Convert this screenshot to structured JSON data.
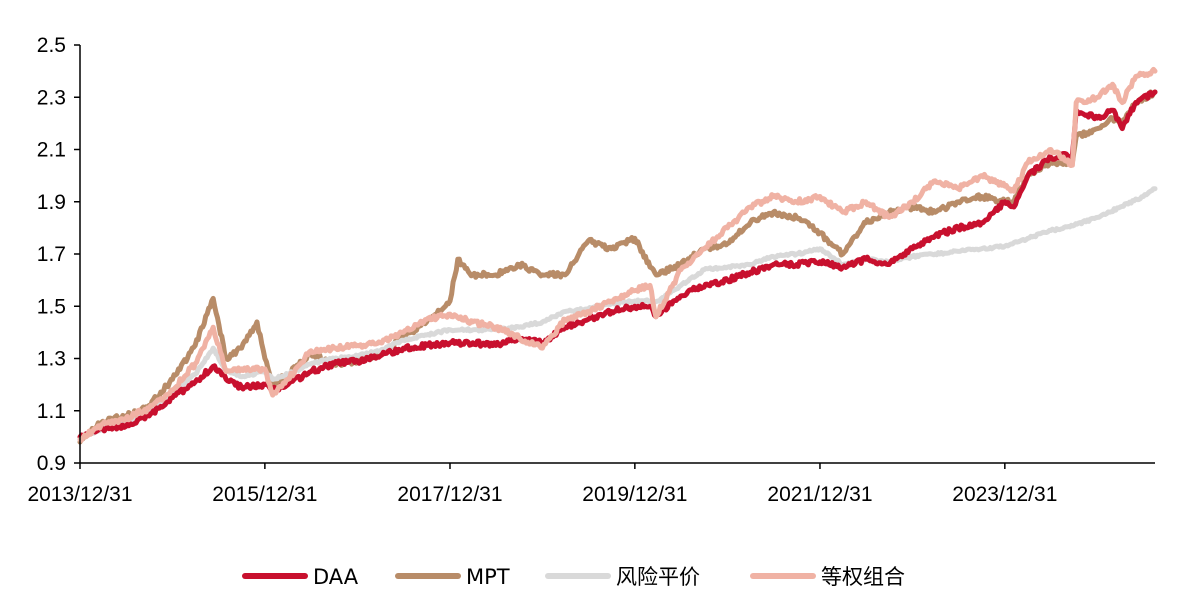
{
  "chart_data": {
    "type": "line",
    "title": "",
    "xlabel": "",
    "ylabel": "",
    "ylim": [
      0.9,
      2.5
    ],
    "xlim": [
      "2013-12-31",
      "2025-08-15"
    ],
    "x_tick_labels": [
      "2013/12/31",
      "2015/12/31",
      "2017/12/31",
      "2019/12/31",
      "2021/12/31",
      "2023/12/31"
    ],
    "x_tick_dates": [
      "2013-12-31",
      "2015-12-31",
      "2017-12-31",
      "2019-12-31",
      "2021-12-31",
      "2023-12-31"
    ],
    "y_ticks": [
      0.9,
      1.1,
      1.3,
      1.5,
      1.7,
      1.9,
      2.1,
      2.3,
      2.5
    ],
    "y_tick_labels": [
      "0.9",
      "1.1",
      "1.3",
      "1.5",
      "1.7",
      "1.9",
      "2.1",
      "2.3",
      "2.5"
    ],
    "grid": false,
    "legend_position": "bottom",
    "series": [
      {
        "name": "DAA",
        "color": "#c8102e",
        "points": [
          [
            "2013-12-31",
            1.0
          ],
          [
            "2014-03-31",
            1.03
          ],
          [
            "2014-06-30",
            1.04
          ],
          [
            "2014-09-30",
            1.08
          ],
          [
            "2014-12-31",
            1.15
          ],
          [
            "2015-03-31",
            1.21
          ],
          [
            "2015-06-10",
            1.27
          ],
          [
            "2015-07-31",
            1.22
          ],
          [
            "2015-09-30",
            1.19
          ],
          [
            "2015-12-31",
            1.2
          ],
          [
            "2016-01-31",
            1.18
          ],
          [
            "2016-03-31",
            1.2
          ],
          [
            "2016-06-30",
            1.25
          ],
          [
            "2016-09-30",
            1.28
          ],
          [
            "2016-12-31",
            1.29
          ],
          [
            "2017-03-31",
            1.31
          ],
          [
            "2017-06-30",
            1.34
          ],
          [
            "2017-09-30",
            1.35
          ],
          [
            "2017-12-31",
            1.36
          ],
          [
            "2018-03-31",
            1.36
          ],
          [
            "2018-06-30",
            1.35
          ],
          [
            "2018-09-30",
            1.38
          ],
          [
            "2018-12-31",
            1.36
          ],
          [
            "2019-03-31",
            1.42
          ],
          [
            "2019-06-30",
            1.45
          ],
          [
            "2019-09-30",
            1.48
          ],
          [
            "2019-12-31",
            1.5
          ],
          [
            "2020-02-29",
            1.5
          ],
          [
            "2020-03-23",
            1.46
          ],
          [
            "2020-05-31",
            1.52
          ],
          [
            "2020-08-31",
            1.57
          ],
          [
            "2020-12-31",
            1.6
          ],
          [
            "2021-03-31",
            1.63
          ],
          [
            "2021-06-30",
            1.66
          ],
          [
            "2021-09-30",
            1.66
          ],
          [
            "2021-12-31",
            1.67
          ],
          [
            "2022-03-31",
            1.65
          ],
          [
            "2022-06-30",
            1.68
          ],
          [
            "2022-09-30",
            1.66
          ],
          [
            "2022-12-31",
            1.72
          ],
          [
            "2023-03-31",
            1.77
          ],
          [
            "2023-06-30",
            1.8
          ],
          [
            "2023-09-30",
            1.82
          ],
          [
            "2023-12-31",
            1.9
          ],
          [
            "2024-02-05",
            1.88
          ],
          [
            "2024-03-31",
            2.0
          ],
          [
            "2024-06-30",
            2.07
          ],
          [
            "2024-09-23",
            2.08
          ],
          [
            "2024-10-08",
            2.25
          ],
          [
            "2024-12-31",
            2.22
          ],
          [
            "2025-02-28",
            2.25
          ],
          [
            "2025-04-08",
            2.18
          ],
          [
            "2025-05-31",
            2.28
          ],
          [
            "2025-08-15",
            2.32
          ]
        ]
      },
      {
        "name": "MPT",
        "color": "#b88c68",
        "points": [
          [
            "2013-12-31",
            0.98
          ],
          [
            "2014-03-31",
            1.06
          ],
          [
            "2014-06-30",
            1.08
          ],
          [
            "2014-09-30",
            1.12
          ],
          [
            "2014-12-31",
            1.22
          ],
          [
            "2015-03-31",
            1.35
          ],
          [
            "2015-06-10",
            1.53
          ],
          [
            "2015-07-31",
            1.3
          ],
          [
            "2015-09-30",
            1.34
          ],
          [
            "2015-11-30",
            1.44
          ],
          [
            "2015-12-31",
            1.3
          ],
          [
            "2016-01-31",
            1.2
          ],
          [
            "2016-03-31",
            1.24
          ],
          [
            "2016-06-30",
            1.32
          ],
          [
            "2016-09-30",
            1.28
          ],
          [
            "2016-12-31",
            1.29
          ],
          [
            "2017-03-31",
            1.32
          ],
          [
            "2017-06-30",
            1.38
          ],
          [
            "2017-09-30",
            1.44
          ],
          [
            "2017-12-31",
            1.52
          ],
          [
            "2018-01-31",
            1.68
          ],
          [
            "2018-03-31",
            1.62
          ],
          [
            "2018-06-30",
            1.62
          ],
          [
            "2018-09-30",
            1.66
          ],
          [
            "2018-12-31",
            1.62
          ],
          [
            "2019-03-31",
            1.62
          ],
          [
            "2019-06-30",
            1.75
          ],
          [
            "2019-09-30",
            1.72
          ],
          [
            "2019-12-31",
            1.76
          ],
          [
            "2020-02-29",
            1.65
          ],
          [
            "2020-03-31",
            1.62
          ],
          [
            "2020-06-30",
            1.66
          ],
          [
            "2020-09-30",
            1.72
          ],
          [
            "2020-12-31",
            1.74
          ],
          [
            "2021-03-31",
            1.82
          ],
          [
            "2021-06-30",
            1.86
          ],
          [
            "2021-09-30",
            1.84
          ],
          [
            "2021-12-31",
            1.78
          ],
          [
            "2022-03-31",
            1.7
          ],
          [
            "2022-06-30",
            1.82
          ],
          [
            "2022-09-30",
            1.86
          ],
          [
            "2022-12-31",
            1.88
          ],
          [
            "2023-03-31",
            1.86
          ],
          [
            "2023-06-30",
            1.9
          ],
          [
            "2023-09-30",
            1.92
          ],
          [
            "2023-12-31",
            1.9
          ],
          [
            "2024-02-05",
            1.9
          ],
          [
            "2024-03-31",
            2.0
          ],
          [
            "2024-06-30",
            2.05
          ],
          [
            "2024-09-23",
            2.05
          ],
          [
            "2024-10-08",
            2.15
          ],
          [
            "2024-12-31",
            2.18
          ],
          [
            "2025-02-28",
            2.22
          ],
          [
            "2025-04-08",
            2.2
          ],
          [
            "2025-05-31",
            2.28
          ],
          [
            "2025-08-15",
            2.32
          ]
        ]
      },
      {
        "name": "风险平价",
        "color": "#d9d9d9",
        "points": [
          [
            "2013-12-31",
            1.0
          ],
          [
            "2014-03-31",
            1.03
          ],
          [
            "2014-06-30",
            1.05
          ],
          [
            "2014-09-30",
            1.1
          ],
          [
            "2014-12-31",
            1.17
          ],
          [
            "2015-03-31",
            1.24
          ],
          [
            "2015-06-10",
            1.34
          ],
          [
            "2015-07-31",
            1.25
          ],
          [
            "2015-09-30",
            1.23
          ],
          [
            "2015-12-31",
            1.25
          ],
          [
            "2016-01-31",
            1.22
          ],
          [
            "2016-03-31",
            1.24
          ],
          [
            "2016-06-30",
            1.28
          ],
          [
            "2016-09-30",
            1.3
          ],
          [
            "2016-12-31",
            1.31
          ],
          [
            "2017-03-31",
            1.33
          ],
          [
            "2017-06-30",
            1.37
          ],
          [
            "2017-09-30",
            1.39
          ],
          [
            "2017-12-31",
            1.41
          ],
          [
            "2018-03-31",
            1.41
          ],
          [
            "2018-06-30",
            1.41
          ],
          [
            "2018-09-30",
            1.42
          ],
          [
            "2018-12-31",
            1.44
          ],
          [
            "2019-03-31",
            1.48
          ],
          [
            "2019-06-30",
            1.49
          ],
          [
            "2019-09-30",
            1.51
          ],
          [
            "2019-12-31",
            1.52
          ],
          [
            "2020-03-31",
            1.52
          ],
          [
            "2020-06-30",
            1.58
          ],
          [
            "2020-09-30",
            1.64
          ],
          [
            "2020-12-31",
            1.65
          ],
          [
            "2021-03-31",
            1.66
          ],
          [
            "2021-06-30",
            1.69
          ],
          [
            "2021-09-30",
            1.7
          ],
          [
            "2021-12-31",
            1.72
          ],
          [
            "2022-03-31",
            1.66
          ],
          [
            "2022-06-30",
            1.68
          ],
          [
            "2022-09-30",
            1.67
          ],
          [
            "2022-12-31",
            1.69
          ],
          [
            "2023-03-31",
            1.7
          ],
          [
            "2023-06-30",
            1.71
          ],
          [
            "2023-09-30",
            1.72
          ],
          [
            "2023-12-31",
            1.73
          ],
          [
            "2024-03-31",
            1.76
          ],
          [
            "2024-06-30",
            1.79
          ],
          [
            "2024-09-30",
            1.81
          ],
          [
            "2024-12-31",
            1.84
          ],
          [
            "2025-03-31",
            1.88
          ],
          [
            "2025-06-30",
            1.92
          ],
          [
            "2025-08-15",
            1.95
          ]
        ]
      },
      {
        "name": "等权组合",
        "color": "#f0b2a4",
        "points": [
          [
            "2013-12-31",
            0.99
          ],
          [
            "2014-03-31",
            1.05
          ],
          [
            "2014-06-30",
            1.07
          ],
          [
            "2014-09-30",
            1.11
          ],
          [
            "2014-12-31",
            1.18
          ],
          [
            "2015-03-31",
            1.28
          ],
          [
            "2015-06-10",
            1.42
          ],
          [
            "2015-07-31",
            1.25
          ],
          [
            "2015-09-30",
            1.26
          ],
          [
            "2015-12-31",
            1.26
          ],
          [
            "2016-01-31",
            1.16
          ],
          [
            "2016-03-31",
            1.22
          ],
          [
            "2016-06-30",
            1.33
          ],
          [
            "2016-09-30",
            1.34
          ],
          [
            "2016-12-31",
            1.35
          ],
          [
            "2017-03-31",
            1.36
          ],
          [
            "2017-06-30",
            1.4
          ],
          [
            "2017-09-30",
            1.45
          ],
          [
            "2017-12-31",
            1.47
          ],
          [
            "2018-03-31",
            1.44
          ],
          [
            "2018-06-30",
            1.42
          ],
          [
            "2018-09-30",
            1.38
          ],
          [
            "2018-12-31",
            1.34
          ],
          [
            "2019-03-31",
            1.45
          ],
          [
            "2019-06-30",
            1.48
          ],
          [
            "2019-09-30",
            1.52
          ],
          [
            "2019-12-31",
            1.56
          ],
          [
            "2020-02-29",
            1.58
          ],
          [
            "2020-03-23",
            1.46
          ],
          [
            "2020-06-30",
            1.64
          ],
          [
            "2020-09-30",
            1.72
          ],
          [
            "2020-12-31",
            1.8
          ],
          [
            "2021-03-31",
            1.88
          ],
          [
            "2021-06-30",
            1.92
          ],
          [
            "2021-09-30",
            1.9
          ],
          [
            "2021-12-31",
            1.92
          ],
          [
            "2022-03-31",
            1.86
          ],
          [
            "2022-06-30",
            1.9
          ],
          [
            "2022-09-30",
            1.84
          ],
          [
            "2022-12-31",
            1.9
          ],
          [
            "2023-03-31",
            1.98
          ],
          [
            "2023-06-30",
            1.95
          ],
          [
            "2023-09-30",
            2.0
          ],
          [
            "2023-12-31",
            1.96
          ],
          [
            "2024-02-05",
            1.94
          ],
          [
            "2024-03-31",
            2.05
          ],
          [
            "2024-06-30",
            2.1
          ],
          [
            "2024-09-23",
            2.04
          ],
          [
            "2024-10-08",
            2.28
          ],
          [
            "2024-12-31",
            2.3
          ],
          [
            "2025-02-28",
            2.35
          ],
          [
            "2025-04-08",
            2.28
          ],
          [
            "2025-05-31",
            2.38
          ],
          [
            "2025-08-15",
            2.4
          ]
        ]
      }
    ]
  }
}
